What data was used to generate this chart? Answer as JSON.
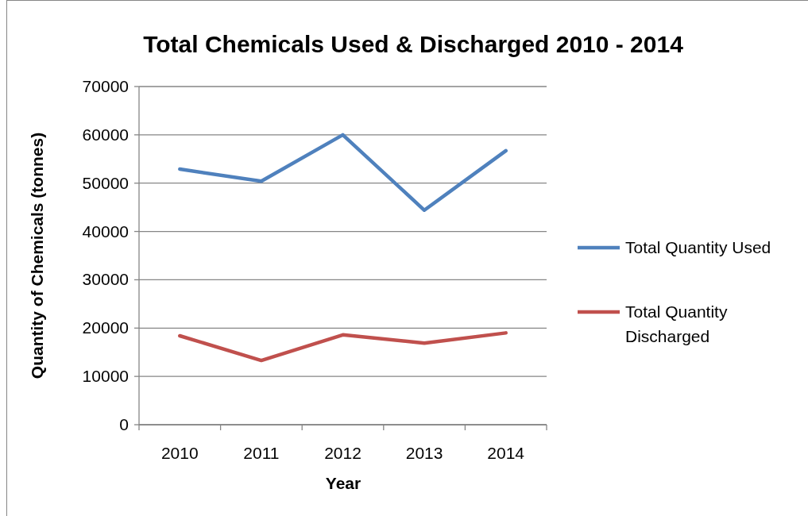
{
  "chart_data": {
    "type": "line",
    "title": "Total Chemicals Used & Discharged 2010 - 2014",
    "xlabel": "Year",
    "ylabel": "Quantity of Chemicals (tonnes)",
    "categories": [
      "2010",
      "2011",
      "2012",
      "2013",
      "2014"
    ],
    "series": [
      {
        "name": "Total Quantity Used",
        "color": "#4f81bd",
        "values": [
          52900,
          50400,
          60000,
          44400,
          56700
        ]
      },
      {
        "name": "Total Quantity Discharged",
        "color": "#c0504d",
        "values": [
          18400,
          13300,
          18600,
          16900,
          19000
        ]
      }
    ],
    "ylim": [
      0,
      70000
    ],
    "yticks": [
      0,
      10000,
      20000,
      30000,
      40000,
      50000,
      60000,
      70000
    ],
    "grid": "y",
    "legend": "right",
    "marker": "none"
  }
}
